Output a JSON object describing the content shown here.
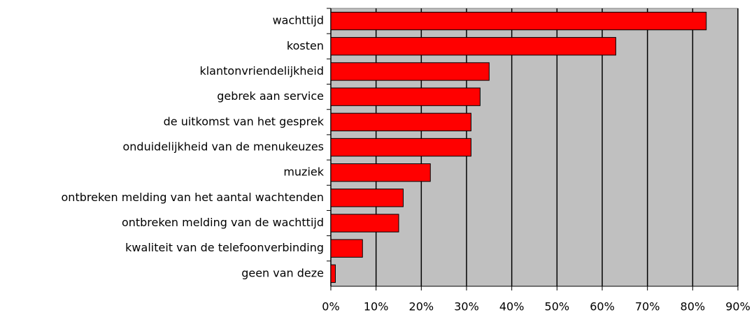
{
  "chart_data": {
    "type": "bar",
    "orientation": "horizontal",
    "categories": [
      "wachttijd",
      "kosten",
      "klantonvriendelijkheid",
      "gebrek aan service",
      "de uitkomst van het gesprek",
      "onduidelijkheid van de menukeuzes",
      "muziek",
      "ontbreken melding van het aantal wachtenden",
      "ontbreken melding van de wachttijd",
      "kwaliteit van de telefoonverbinding",
      "geen van deze"
    ],
    "values": [
      83,
      63,
      35,
      33,
      31,
      31,
      22,
      16,
      15,
      7,
      1
    ],
    "color": "#ff0000",
    "xlim": [
      0,
      90
    ],
    "xticks": [
      {
        "value": 0,
        "label": "0%"
      },
      {
        "value": 10,
        "label": "10%"
      },
      {
        "value": 20,
        "label": "20%"
      },
      {
        "value": 30,
        "label": "30%"
      },
      {
        "value": 40,
        "label": "40%"
      },
      {
        "value": 50,
        "label": "50%"
      },
      {
        "value": 60,
        "label": "60%"
      },
      {
        "value": 70,
        "label": "70%"
      },
      {
        "value": 80,
        "label": "80%"
      },
      {
        "value": 90,
        "label": "90%"
      }
    ],
    "grid": true
  }
}
